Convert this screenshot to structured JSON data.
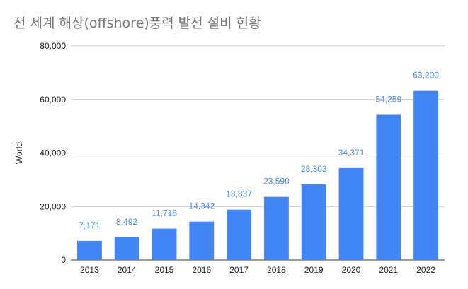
{
  "chart_data": {
    "type": "bar",
    "title": "전 세계 해상(offshore)풍력 발전 설비 현황",
    "ylabel": "World",
    "xlabel": "",
    "categories": [
      "2013",
      "2014",
      "2015",
      "2016",
      "2017",
      "2018",
      "2019",
      "2020",
      "2021",
      "2022"
    ],
    "values": [
      7171,
      8492,
      11718,
      14342,
      18837,
      23590,
      28303,
      34371,
      54259,
      63200
    ],
    "data_labels": [
      "7,171",
      "8,492",
      "11,718",
      "14,342",
      "18,837",
      "23,590",
      "28,303",
      "34,371",
      "54,259",
      "63,200"
    ],
    "ylim": [
      0,
      80000
    ],
    "yticks": [
      0,
      20000,
      40000,
      60000,
      80000
    ],
    "ytick_labels": [
      "0",
      "20,000",
      "40,000",
      "60,000",
      "80,000"
    ],
    "grid": true,
    "bar_color": "#4285f4",
    "label_color": "#4285f4"
  }
}
